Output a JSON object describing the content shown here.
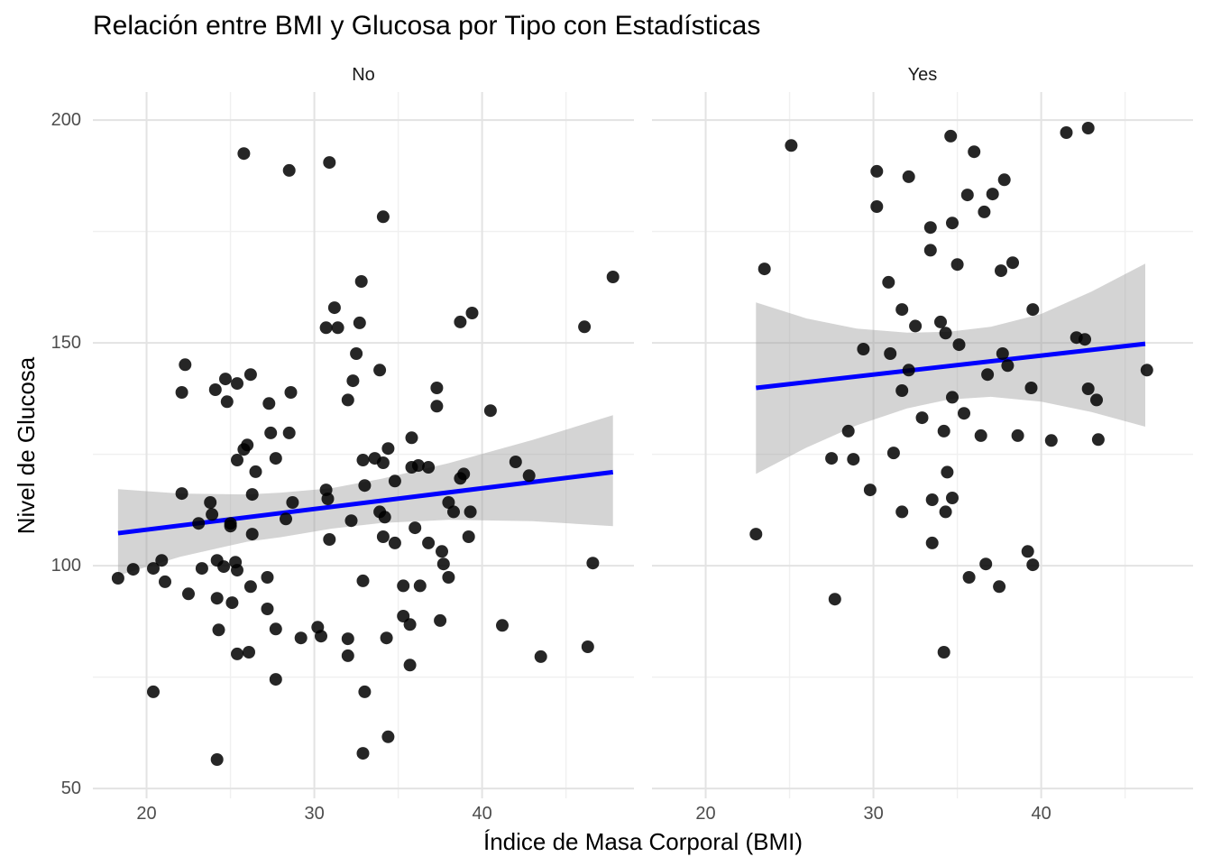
{
  "title": "Relación entre BMI y Glucosa por Tipo con Estadísticas",
  "x_axis": {
    "label": "Índice de Masa Corporal (BMI)",
    "ticks": [
      20,
      30,
      40
    ],
    "minor_ticks": [
      25,
      35,
      45
    ]
  },
  "y_axis": {
    "label": "Nivel de Glucosa",
    "ticks": [
      50,
      100,
      150,
      200
    ],
    "minor_ticks": [
      75,
      125,
      175
    ]
  },
  "colors": {
    "background": "#ffffff",
    "point": "#000000",
    "point_opacity": 0.85,
    "trend_line": "#0000ff",
    "ribbon": "#999999",
    "ribbon_opacity": 0.42,
    "grid_major": "#e3e3e3",
    "grid_minor": "#f0f0f0",
    "tick_text": "#4d4d4d",
    "title_text": "#000000",
    "strip_text": "#1a1a1a"
  },
  "chart_data": {
    "type": "scatter",
    "xlabel": "Índice de Masa Corporal (BMI)",
    "ylabel": "Nivel de Glucosa",
    "title": "Relación entre BMI y Glucosa por Tipo con Estadísticas",
    "xlim": [
      16.8,
      49.05
    ],
    "ylim": [
      47.8,
      206.3
    ],
    "grid": true,
    "legend": false,
    "facets": [
      {
        "label": "No",
        "trend": {
          "x1": 18.3,
          "y1": 107.3,
          "x2": 47.8,
          "y2": 121.0
        },
        "ribbon": [
          [
            18.3,
            97.8,
            117.2
          ],
          [
            22.0,
            102.0,
            116.2
          ],
          [
            26.0,
            105.4,
            116.0
          ],
          [
            28.0,
            106.4,
            116.4
          ],
          [
            31.0,
            108.3,
            117.4
          ],
          [
            34.0,
            109.6,
            119.5
          ],
          [
            38.0,
            110.3,
            123.0
          ],
          [
            43.0,
            110.0,
            128.2
          ],
          [
            47.8,
            108.9,
            133.8
          ]
        ],
        "points": [
          [
            25.8,
            192.5
          ],
          [
            28.5,
            188.7
          ],
          [
            30.9,
            190.5
          ],
          [
            34.1,
            178.3
          ],
          [
            32.8,
            163.8
          ],
          [
            47.8,
            164.8
          ],
          [
            31.2,
            157.9
          ],
          [
            39.4,
            156.7
          ],
          [
            38.7,
            154.7
          ],
          [
            46.1,
            153.6
          ],
          [
            30.7,
            153.4
          ],
          [
            31.4,
            153.4
          ],
          [
            32.7,
            154.5
          ],
          [
            32.5,
            147.6
          ],
          [
            33.9,
            143.9
          ],
          [
            22.3,
            145.1
          ],
          [
            26.2,
            142.9
          ],
          [
            24.7,
            141.9
          ],
          [
            25.4,
            140.9
          ],
          [
            32.3,
            141.5
          ],
          [
            24.1,
            139.5
          ],
          [
            22.1,
            138.9
          ],
          [
            28.6,
            138.9
          ],
          [
            37.3,
            139.9
          ],
          [
            24.8,
            136.8
          ],
          [
            27.3,
            136.4
          ],
          [
            32.0,
            137.2
          ],
          [
            37.3,
            135.8
          ],
          [
            40.5,
            134.8
          ],
          [
            27.4,
            129.8
          ],
          [
            28.5,
            129.8
          ],
          [
            26.0,
            127.1
          ],
          [
            35.8,
            128.7
          ],
          [
            34.4,
            126.3
          ],
          [
            25.8,
            126.1
          ],
          [
            25.4,
            123.7
          ],
          [
            27.7,
            124.1
          ],
          [
            32.9,
            123.7
          ],
          [
            26.5,
            121.1
          ],
          [
            33.6,
            124.1
          ],
          [
            34.1,
            123.1
          ],
          [
            34.8,
            119.0
          ],
          [
            35.8,
            122.1
          ],
          [
            36.2,
            122.5
          ],
          [
            36.8,
            122.1
          ],
          [
            38.7,
            119.6
          ],
          [
            38.9,
            120.6
          ],
          [
            42.0,
            123.3
          ],
          [
            42.8,
            120.2
          ],
          [
            22.1,
            116.2
          ],
          [
            23.8,
            114.2
          ],
          [
            26.3,
            116.0
          ],
          [
            23.9,
            111.5
          ],
          [
            28.7,
            114.2
          ],
          [
            30.7,
            117.0
          ],
          [
            30.8,
            115.0
          ],
          [
            33.0,
            118.0
          ],
          [
            23.1,
            109.5
          ],
          [
            25.0,
            109.5
          ],
          [
            25.0,
            108.9
          ],
          [
            26.3,
            107.1
          ],
          [
            28.3,
            110.5
          ],
          [
            32.2,
            110.1
          ],
          [
            30.9,
            105.9
          ],
          [
            38.0,
            114.2
          ],
          [
            38.3,
            112.1
          ],
          [
            39.3,
            112.1
          ],
          [
            33.9,
            112.1
          ],
          [
            34.2,
            110.9
          ],
          [
            36.0,
            108.5
          ],
          [
            34.1,
            106.5
          ],
          [
            34.8,
            105.1
          ],
          [
            36.8,
            105.1
          ],
          [
            39.2,
            106.5
          ],
          [
            37.6,
            103.2
          ],
          [
            19.2,
            99.2
          ],
          [
            18.3,
            97.2
          ],
          [
            20.4,
            99.4
          ],
          [
            20.9,
            101.2
          ],
          [
            21.1,
            96.4
          ],
          [
            23.3,
            99.4
          ],
          [
            24.2,
            101.2
          ],
          [
            24.6,
            99.8
          ],
          [
            25.3,
            100.8
          ],
          [
            25.4,
            99.0
          ],
          [
            27.2,
            97.4
          ],
          [
            37.7,
            100.4
          ],
          [
            38.0,
            97.4
          ],
          [
            46.6,
            100.6
          ],
          [
            26.2,
            95.3
          ],
          [
            35.3,
            95.5
          ],
          [
            36.3,
            95.5
          ],
          [
            32.9,
            96.6
          ],
          [
            22.5,
            93.7
          ],
          [
            24.2,
            92.7
          ],
          [
            25.1,
            91.7
          ],
          [
            27.2,
            90.3
          ],
          [
            35.3,
            88.7
          ],
          [
            35.7,
            86.8
          ],
          [
            37.5,
            87.7
          ],
          [
            24.3,
            85.6
          ],
          [
            27.7,
            85.8
          ],
          [
            29.2,
            83.8
          ],
          [
            30.2,
            86.2
          ],
          [
            30.4,
            84.2
          ],
          [
            32.0,
            83.6
          ],
          [
            34.3,
            83.8
          ],
          [
            32.0,
            79.8
          ],
          [
            25.4,
            80.2
          ],
          [
            26.1,
            80.6
          ],
          [
            41.2,
            86.6
          ],
          [
            43.5,
            79.6
          ],
          [
            46.3,
            81.8
          ],
          [
            35.7,
            77.7
          ],
          [
            27.7,
            74.5
          ],
          [
            20.4,
            71.7
          ],
          [
            33.0,
            71.7
          ],
          [
            34.4,
            61.6
          ],
          [
            24.2,
            56.5
          ],
          [
            32.9,
            57.9
          ]
        ]
      },
      {
        "label": "Yes",
        "trend": {
          "x1": 23.0,
          "y1": 139.9,
          "x2": 46.2,
          "y2": 149.8
        },
        "ribbon": [
          [
            23.0,
            120.6,
            159.1
          ],
          [
            26.0,
            126.5,
            155.5
          ],
          [
            29.0,
            131.5,
            153.2
          ],
          [
            32.0,
            135.3,
            152.3
          ],
          [
            34.5,
            137.3,
            152.5
          ],
          [
            37.0,
            137.9,
            153.6
          ],
          [
            40.0,
            136.8,
            156.5
          ],
          [
            43.0,
            134.5,
            161.5
          ],
          [
            46.2,
            131.2,
            167.8
          ]
        ],
        "points": [
          [
            25.1,
            194.3
          ],
          [
            34.6,
            196.4
          ],
          [
            41.5,
            197.2
          ],
          [
            42.8,
            198.2
          ],
          [
            36.0,
            192.9
          ],
          [
            30.2,
            188.5
          ],
          [
            32.1,
            187.3
          ],
          [
            37.8,
            186.6
          ],
          [
            35.6,
            183.2
          ],
          [
            37.1,
            183.4
          ],
          [
            30.2,
            180.6
          ],
          [
            36.6,
            179.4
          ],
          [
            33.4,
            175.9
          ],
          [
            34.7,
            176.9
          ],
          [
            33.4,
            170.8
          ],
          [
            23.5,
            166.6
          ],
          [
            35.0,
            167.6
          ],
          [
            38.3,
            168.0
          ],
          [
            37.6,
            166.2
          ],
          [
            30.9,
            163.6
          ],
          [
            31.7,
            157.5
          ],
          [
            39.5,
            157.5
          ],
          [
            32.5,
            153.8
          ],
          [
            34.0,
            154.7
          ],
          [
            34.3,
            152.2
          ],
          [
            35.1,
            149.6
          ],
          [
            42.1,
            151.2
          ],
          [
            42.6,
            150.8
          ],
          [
            29.4,
            148.6
          ],
          [
            31.0,
            147.6
          ],
          [
            37.7,
            147.6
          ],
          [
            38.0,
            144.9
          ],
          [
            32.1,
            143.9
          ],
          [
            36.8,
            142.9
          ],
          [
            46.3,
            143.9
          ],
          [
            31.7,
            139.3
          ],
          [
            39.4,
            139.9
          ],
          [
            42.8,
            139.7
          ],
          [
            43.3,
            137.2
          ],
          [
            34.7,
            137.8
          ],
          [
            35.4,
            134.2
          ],
          [
            32.9,
            133.2
          ],
          [
            28.5,
            130.2
          ],
          [
            34.2,
            130.2
          ],
          [
            36.4,
            129.2
          ],
          [
            38.6,
            129.2
          ],
          [
            40.6,
            128.1
          ],
          [
            43.4,
            128.3
          ],
          [
            27.5,
            124.1
          ],
          [
            28.8,
            123.9
          ],
          [
            31.2,
            125.3
          ],
          [
            34.4,
            121.0
          ],
          [
            29.8,
            117.0
          ],
          [
            33.5,
            114.8
          ],
          [
            34.7,
            115.2
          ],
          [
            31.7,
            112.1
          ],
          [
            34.3,
            112.1
          ],
          [
            23.0,
            107.1
          ],
          [
            33.5,
            105.1
          ],
          [
            39.2,
            103.2
          ],
          [
            36.7,
            100.4
          ],
          [
            39.5,
            100.2
          ],
          [
            35.7,
            97.4
          ],
          [
            37.5,
            95.3
          ],
          [
            27.7,
            92.5
          ],
          [
            34.2,
            80.6
          ]
        ]
      }
    ]
  }
}
